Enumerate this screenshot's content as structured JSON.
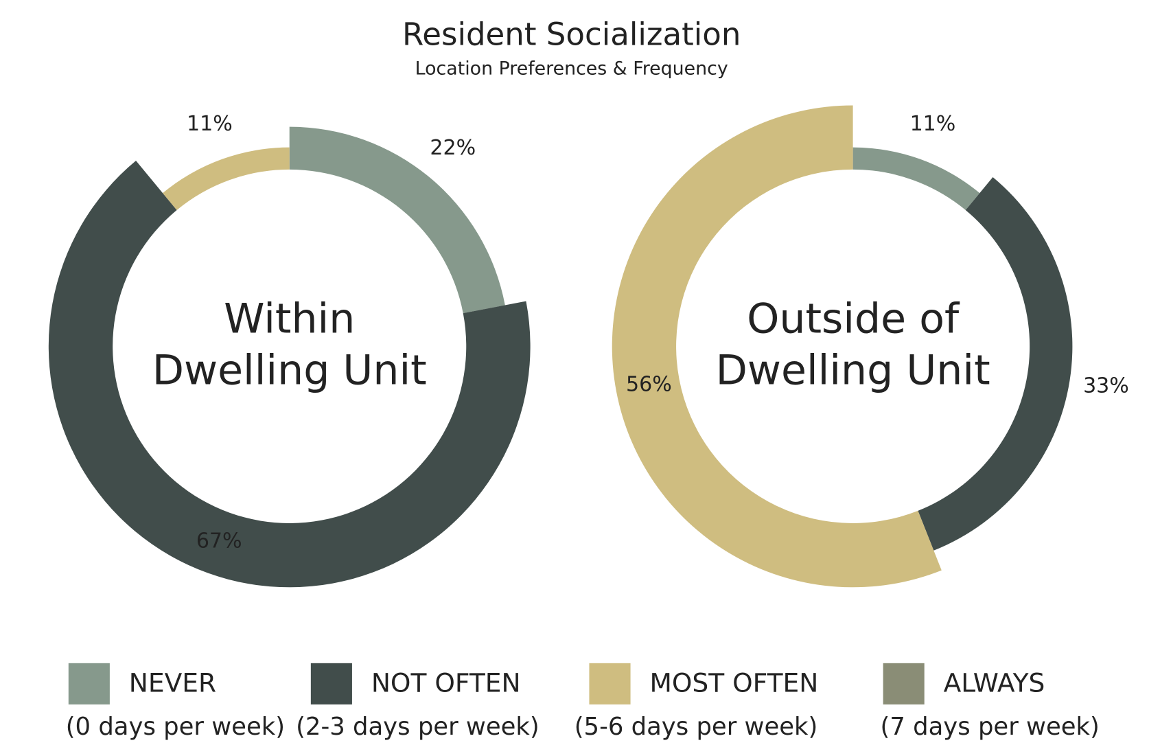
{
  "title": "Resident Socialization",
  "subtitle": "Location Preferences & Frequency",
  "chart_data": [
    {
      "type": "pie",
      "center_label": [
        "Within",
        "Dwelling Unit"
      ],
      "categories": [
        "NEVER",
        "NOT OFTEN",
        "MOST OFTEN"
      ],
      "values": [
        22,
        67,
        11
      ],
      "value_labels": [
        "22%",
        "67%",
        "11%"
      ],
      "colors": [
        "#86998c",
        "#414d4b",
        "#cfbd80"
      ]
    },
    {
      "type": "pie",
      "center_label": [
        "Outside of",
        "Dwelling Unit"
      ],
      "categories": [
        "NEVER",
        "NOT OFTEN",
        "MOST OFTEN"
      ],
      "values": [
        11,
        33,
        56
      ],
      "value_labels": [
        "11%",
        "33%",
        "56%"
      ],
      "colors": [
        "#86998c",
        "#414d4b",
        "#cfbd80"
      ]
    }
  ],
  "legend": [
    {
      "name": "NEVER",
      "description": "(0 days per week)",
      "color": "#86998c"
    },
    {
      "name": "NOT OFTEN",
      "description": "(2-3 days per week)",
      "color": "#414d4b"
    },
    {
      "name": "MOST OFTEN",
      "description": "(5-6 days per week)",
      "color": "#cfbd80"
    },
    {
      "name": "ALWAYS",
      "description": "(7 days per week)",
      "color": "#8a8d76"
    }
  ]
}
